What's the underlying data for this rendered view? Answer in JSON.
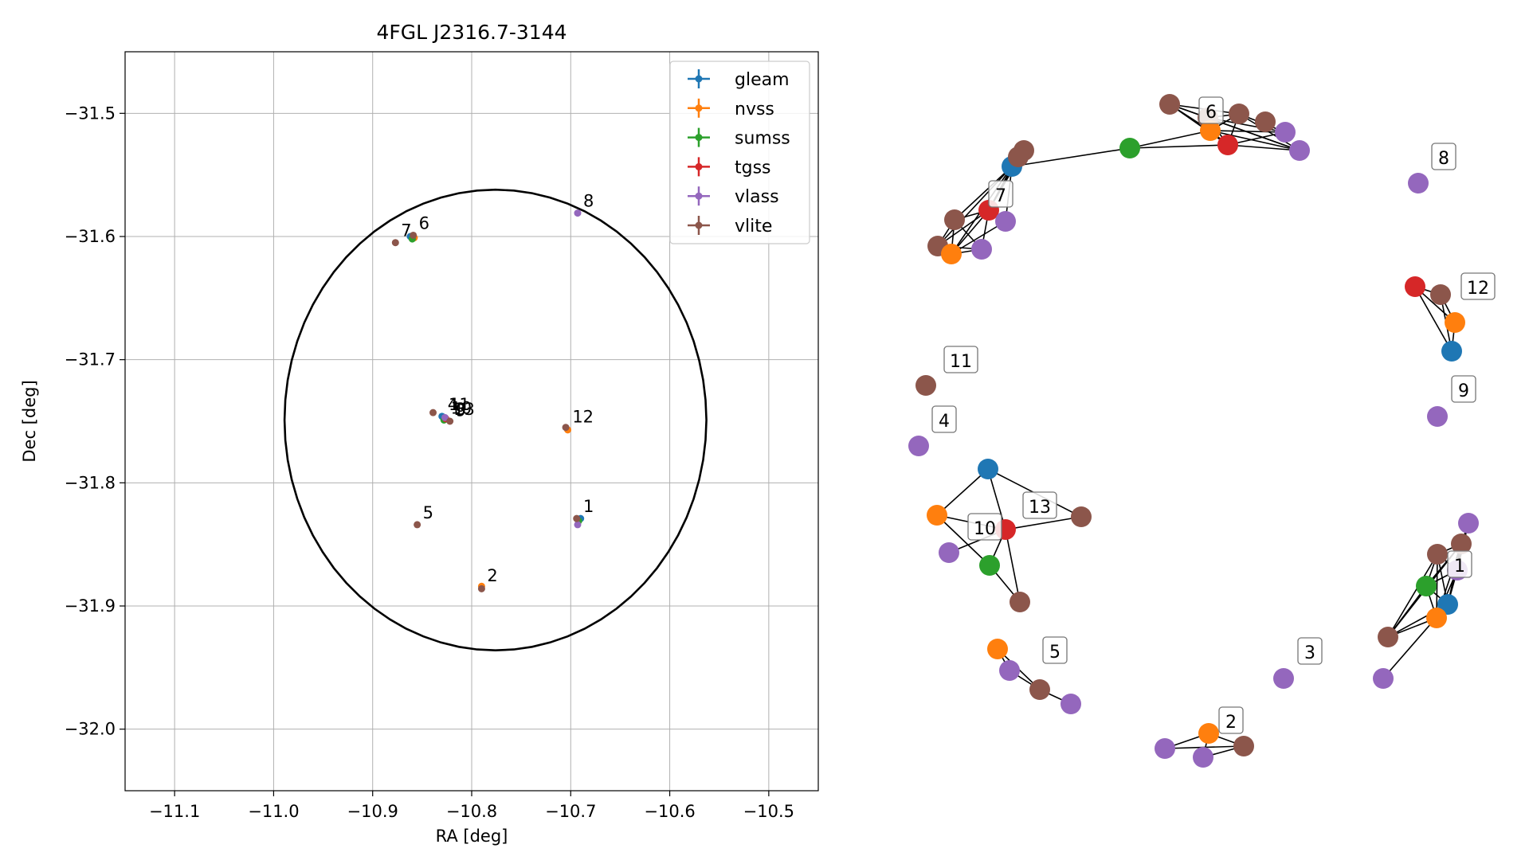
{
  "chart_data": [
    {
      "type": "scatter",
      "title": "4FGL J2316.7-3144",
      "xlabel": "RA [deg]",
      "ylabel": "Dec [deg]",
      "xlim": [
        -11.15,
        -10.45
      ],
      "ylim": [
        -32.05,
        -31.45
      ],
      "xticks": [
        -11.1,
        -11.0,
        -10.9,
        -10.8,
        -10.7,
        -10.6,
        -10.5
      ],
      "yticks": [
        -31.5,
        -31.6,
        -31.7,
        -31.8,
        -31.9,
        -32.0
      ],
      "xtick_labels": [
        "−11.1",
        "−11.0",
        "−10.9",
        "−10.8",
        "−10.7",
        "−10.6",
        "−10.5"
      ],
      "ytick_labels": [
        "−31.5",
        "−31.6",
        "−31.7",
        "−31.8",
        "−31.9",
        "−32.0"
      ],
      "grid": true,
      "legend_position": "top-right",
      "series": [
        {
          "name": "gleam",
          "color": "#1f77b4",
          "points": [
            [
              -10.862,
              -31.6
            ],
            [
              -10.83,
              -31.746
            ],
            [
              -10.69,
              -31.829
            ]
          ]
        },
        {
          "name": "nvss",
          "color": "#ff7f0e",
          "points": [
            [
              -10.703,
              -31.757
            ],
            [
              -10.79,
              -31.884
            ],
            [
              -10.858,
              -31.601
            ]
          ]
        },
        {
          "name": "sumss",
          "color": "#2ca02c",
          "points": [
            [
              -10.86,
              -31.602
            ],
            [
              -10.828,
              -31.749
            ],
            [
              -10.692,
              -31.831
            ]
          ]
        },
        {
          "name": "tgss",
          "color": "#d62728",
          "points": [
            [
              -10.826,
              -31.748
            ]
          ]
        },
        {
          "name": "vlass",
          "color": "#9467bd",
          "points": [
            [
              -10.693,
              -31.581
            ],
            [
              -10.693,
              -31.834
            ],
            [
              -10.827,
              -31.747
            ]
          ]
        },
        {
          "name": "vlite",
          "color": "#8c564b",
          "points": [
            [
              -10.877,
              -31.605
            ],
            [
              -10.859,
              -31.599
            ],
            [
              -10.839,
              -31.743
            ],
            [
              -10.822,
              -31.75
            ],
            [
              -10.855,
              -31.834
            ],
            [
              -10.79,
              -31.886
            ],
            [
              -10.705,
              -31.755
            ],
            [
              -10.694,
              -31.829
            ]
          ]
        }
      ],
      "labels": [
        {
          "text": "7",
          "x": -10.877,
          "y": -31.605
        },
        {
          "text": "6",
          "x": -10.859,
          "y": -31.599
        },
        {
          "text": "8",
          "x": -10.693,
          "y": -31.581
        },
        {
          "text": "4",
          "x": -10.83,
          "y": -31.746
        },
        {
          "text": "11",
          "x": -10.829,
          "y": -31.746
        },
        {
          "text": "3",
          "x": -10.822,
          "y": -31.75
        },
        {
          "text": "9",
          "x": -10.822,
          "y": -31.751
        },
        {
          "text": "10",
          "x": -10.827,
          "y": -31.749
        },
        {
          "text": "13",
          "x": -10.824,
          "y": -31.75
        },
        {
          "text": "12",
          "x": -10.704,
          "y": -31.756
        },
        {
          "text": "1",
          "x": -10.693,
          "y": -31.829
        },
        {
          "text": "5",
          "x": -10.855,
          "y": -31.834
        },
        {
          "text": "2",
          "x": -10.79,
          "y": -31.885
        }
      ],
      "ellipse": {
        "center": [
          -10.776,
          -31.749
        ],
        "ra_semi_axis": 0.213,
        "dec_semi_axis": 0.187
      }
    },
    {
      "type": "network",
      "nodes": [
        {
          "id": "c6",
          "color": "#8c564b",
          "label": "6"
        },
        {
          "id": "vl6a",
          "color": "#8c564b"
        },
        {
          "id": "vl6b",
          "color": "#8c564b"
        },
        {
          "id": "vl6c",
          "color": "#8c564b"
        },
        {
          "id": "n6",
          "color": "#ff7f0e"
        },
        {
          "id": "t6",
          "color": "#d62728"
        },
        {
          "id": "s6",
          "color": "#2ca02c"
        },
        {
          "id": "v6a",
          "color": "#9467bd"
        },
        {
          "id": "v6b",
          "color": "#9467bd"
        },
        {
          "id": "g7",
          "color": "#1f77b4"
        },
        {
          "id": "vl7a",
          "color": "#8c564b"
        },
        {
          "id": "vl7b",
          "color": "#8c564b"
        },
        {
          "id": "c7",
          "color": "#d62728",
          "label": "7"
        },
        {
          "id": "vl7c",
          "color": "#8c564b"
        },
        {
          "id": "vl7d",
          "color": "#8c564b"
        },
        {
          "id": "n7",
          "color": "#ff7f0e"
        },
        {
          "id": "v7a",
          "color": "#9467bd"
        },
        {
          "id": "v7b",
          "color": "#9467bd"
        },
        {
          "id": "c8",
          "color": "#9467bd",
          "label": "8"
        },
        {
          "id": "t12",
          "color": "#d62728"
        },
        {
          "id": "c12",
          "color": "#8c564b",
          "label": "12"
        },
        {
          "id": "n12",
          "color": "#ff7f0e"
        },
        {
          "id": "g12",
          "color": "#1f77b4"
        },
        {
          "id": "c11",
          "color": "#8c564b",
          "label": "11"
        },
        {
          "id": "c9",
          "color": "#9467bd",
          "label": "9"
        },
        {
          "id": "c4",
          "color": "#9467bd",
          "label": "4"
        },
        {
          "id": "g13",
          "color": "#1f77b4"
        },
        {
          "id": "n13",
          "color": "#ff7f0e"
        },
        {
          "id": "c13",
          "color": "#d62728",
          "label": "13"
        },
        {
          "id": "vl13",
          "color": "#8c564b"
        },
        {
          "id": "c10",
          "color": "#9467bd",
          "label": "10"
        },
        {
          "id": "s13",
          "color": "#2ca02c"
        },
        {
          "id": "vl13b",
          "color": "#8c564b"
        },
        {
          "id": "v1a",
          "color": "#9467bd"
        },
        {
          "id": "vl1a",
          "color": "#8c564b"
        },
        {
          "id": "vl1b",
          "color": "#8c564b"
        },
        {
          "id": "c1",
          "color": "#9467bd",
          "label": "1"
        },
        {
          "id": "s1",
          "color": "#2ca02c"
        },
        {
          "id": "g1",
          "color": "#1f77b4"
        },
        {
          "id": "n1",
          "color": "#ff7f0e"
        },
        {
          "id": "vl1c",
          "color": "#8c564b"
        },
        {
          "id": "v1b",
          "color": "#9467bd"
        },
        {
          "id": "n5",
          "color": "#ff7f0e"
        },
        {
          "id": "c5",
          "color": "#8c564b",
          "label": "5"
        },
        {
          "id": "v5a",
          "color": "#9467bd"
        },
        {
          "id": "v5b",
          "color": "#9467bd"
        },
        {
          "id": "c3",
          "color": "#9467bd",
          "label": "3"
        },
        {
          "id": "c2",
          "color": "#ff7f0e",
          "label": "2"
        },
        {
          "id": "vl2",
          "color": "#8c564b"
        },
        {
          "id": "v2a",
          "color": "#9467bd"
        },
        {
          "id": "v2b",
          "color": "#9467bd"
        }
      ],
      "edges": [
        [
          "c6",
          "n6"
        ],
        [
          "c6",
          "t6"
        ],
        [
          "c6",
          "vl6a"
        ],
        [
          "c6",
          "vl6b"
        ],
        [
          "c6",
          "v6a"
        ],
        [
          "c6",
          "v6b"
        ],
        [
          "n6",
          "t6"
        ],
        [
          "n6",
          "vl6a"
        ],
        [
          "n6",
          "vl6b"
        ],
        [
          "n6",
          "v6a"
        ],
        [
          "n6",
          "v6b"
        ],
        [
          "n6",
          "s6"
        ],
        [
          "t6",
          "vl6a"
        ],
        [
          "t6",
          "vl6b"
        ],
        [
          "t6",
          "v6a"
        ],
        [
          "t6",
          "v6b"
        ],
        [
          "t6",
          "s6"
        ],
        [
          "vl6a",
          "vl6b"
        ],
        [
          "vl6a",
          "v6b"
        ],
        [
          "vl6b",
          "v6a"
        ],
        [
          "vl6b",
          "v6b"
        ],
        [
          "s6",
          "g7"
        ],
        [
          "g7",
          "vl7a"
        ],
        [
          "g7",
          "vl7b"
        ],
        [
          "g7",
          "c7"
        ],
        [
          "g7",
          "n7"
        ],
        [
          "g7",
          "v7a"
        ],
        [
          "g7",
          "vl7c"
        ],
        [
          "g7",
          "vl7d"
        ],
        [
          "vl7a",
          "c7"
        ],
        [
          "vl7b",
          "c7"
        ],
        [
          "c7",
          "vl7c"
        ],
        [
          "c7",
          "vl7d"
        ],
        [
          "c7",
          "n7"
        ],
        [
          "c7",
          "v7a"
        ],
        [
          "c7",
          "v7b"
        ],
        [
          "vl7c",
          "vl7d"
        ],
        [
          "vl7c",
          "n7"
        ],
        [
          "vl7d",
          "n7"
        ],
        [
          "n7",
          "v7a"
        ],
        [
          "n7",
          "v7b"
        ],
        [
          "vl7d",
          "v7b"
        ],
        [
          "vl7c",
          "v7b"
        ],
        [
          "t12",
          "c12"
        ],
        [
          "t12",
          "n12"
        ],
        [
          "t12",
          "g12"
        ],
        [
          "c12",
          "n12"
        ],
        [
          "c12",
          "g12"
        ],
        [
          "n12",
          "g12"
        ],
        [
          "g13",
          "n13"
        ],
        [
          "g13",
          "c13"
        ],
        [
          "g13",
          "vl13"
        ],
        [
          "n13",
          "c13"
        ],
        [
          "n13",
          "s13"
        ],
        [
          "c13",
          "vl13"
        ],
        [
          "c13",
          "s13"
        ],
        [
          "c13",
          "c10"
        ],
        [
          "c13",
          "vl13b"
        ],
        [
          "s13",
          "vl13b"
        ],
        [
          "v1a",
          "vl1a"
        ],
        [
          "v1a",
          "c1"
        ],
        [
          "vl1a",
          "vl1b"
        ],
        [
          "vl1a",
          "c1"
        ],
        [
          "vl1a",
          "s1"
        ],
        [
          "vl1a",
          "g1"
        ],
        [
          "vl1a",
          "n1"
        ],
        [
          "vl1a",
          "vl1c"
        ],
        [
          "vl1b",
          "c1"
        ],
        [
          "vl1b",
          "s1"
        ],
        [
          "vl1b",
          "g1"
        ],
        [
          "vl1b",
          "n1"
        ],
        [
          "vl1b",
          "vl1c"
        ],
        [
          "c1",
          "s1"
        ],
        [
          "c1",
          "g1"
        ],
        [
          "c1",
          "n1"
        ],
        [
          "s1",
          "g1"
        ],
        [
          "s1",
          "n1"
        ],
        [
          "s1",
          "vl1c"
        ],
        [
          "g1",
          "n1"
        ],
        [
          "g1",
          "vl1c"
        ],
        [
          "n1",
          "vl1c"
        ],
        [
          "g1",
          "v1b"
        ],
        [
          "n5",
          "v5a"
        ],
        [
          "n5",
          "c5"
        ],
        [
          "v5a",
          "c5"
        ],
        [
          "c5",
          "v5b"
        ],
        [
          "c2",
          "vl2"
        ],
        [
          "c2",
          "v2a"
        ],
        [
          "c2",
          "v2b"
        ],
        [
          "vl2",
          "v2a"
        ],
        [
          "vl2",
          "v2b"
        ]
      ]
    }
  ]
}
